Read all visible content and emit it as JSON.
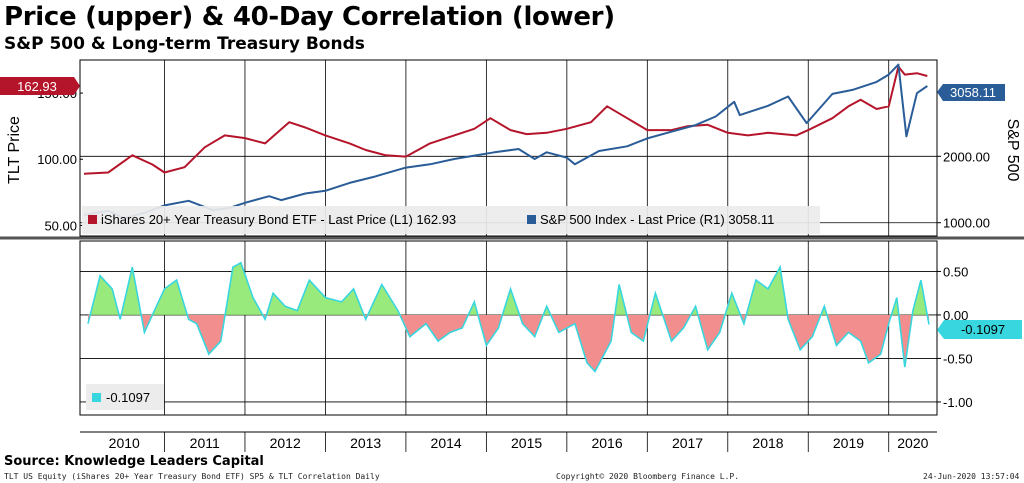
{
  "header": {
    "title": "Price (upper) & 40-Day Correlation (lower)",
    "subtitle": "S&P 500 & Long-term Treasury Bonds"
  },
  "footer": {
    "source": "Source: Knowledge Leaders Capital",
    "security": "TLT US Equity (iShares 20+ Year Treasury Bond ETF) SP5 & TLT Correlation  Daily",
    "copyright": "Copyright© 2020 Bloomberg Finance L.P.",
    "timestamp": "24-Jun-2020 13:57:04"
  },
  "colors": {
    "tlt": "#b5152b",
    "spx": "#2a5d98",
    "corr_line": "#38d6de",
    "corr_positive": "#99ea7d",
    "corr_negative": "#f28e8e",
    "grid": "#000000",
    "divider": "#555555"
  },
  "chart_data": [
    {
      "type": "line",
      "panel": "upper",
      "x_range": [
        2009.95,
        2020.6
      ],
      "x_ticks": [
        "2010",
        "2011",
        "2012",
        "2013",
        "2014",
        "2015",
        "2016",
        "2017",
        "2018",
        "2019",
        "2020"
      ],
      "ylabel_left": "TLT Price",
      "ylabel_right": "S&P 500",
      "ylim_left": [
        42,
        175
      ],
      "ylim_right": [
        800,
        3450
      ],
      "yticks_left": [
        "50.00",
        "100.00",
        "150.00"
      ],
      "yticks_right": [
        "1000.00",
        "2000.00"
      ],
      "legend_placement": "bottom-left",
      "series": [
        {
          "name": "iShares 20+ Year Treasury Bond ETF - Last Price (L1) 162.93",
          "axis": "left",
          "last_label": "162.93",
          "x": [
            2010.0,
            2010.3,
            2010.6,
            2010.85,
            2011.0,
            2011.25,
            2011.5,
            2011.75,
            2012.0,
            2012.25,
            2012.55,
            2012.75,
            2013.0,
            2013.3,
            2013.5,
            2013.75,
            2014.0,
            2014.3,
            2014.6,
            2014.85,
            2015.05,
            2015.3,
            2015.5,
            2015.75,
            2016.0,
            2016.3,
            2016.5,
            2016.75,
            2017.0,
            2017.3,
            2017.5,
            2017.75,
            2018.0,
            2018.25,
            2018.5,
            2018.85,
            2019.0,
            2019.3,
            2019.5,
            2019.65,
            2019.85,
            2020.0,
            2020.12,
            2020.2,
            2020.35,
            2020.48
          ],
          "values": [
            89,
            90,
            103,
            96,
            90,
            94,
            109,
            118,
            116,
            112,
            128,
            124,
            118,
            112,
            107,
            103,
            102,
            112,
            118,
            123,
            131,
            122,
            119,
            120,
            123,
            128,
            140,
            131,
            122,
            122,
            125,
            126,
            120,
            118,
            120,
            118,
            122,
            131,
            140,
            145,
            138,
            140,
            170,
            164,
            165,
            162.93
          ]
        },
        {
          "name": "S&P 500 Index - Last Price (R1) 3058.11",
          "axis": "right",
          "last_label": "3058.11",
          "x": [
            2010.0,
            2010.3,
            2010.5,
            2010.75,
            2011.0,
            2011.3,
            2011.6,
            2011.8,
            2012.0,
            2012.3,
            2012.45,
            2012.75,
            2013.0,
            2013.3,
            2013.6,
            2013.8,
            2014.0,
            2014.3,
            2014.6,
            2014.85,
            2015.1,
            2015.4,
            2015.6,
            2015.75,
            2016.0,
            2016.1,
            2016.4,
            2016.75,
            2017.0,
            2017.3,
            2017.6,
            2017.85,
            2018.08,
            2018.15,
            2018.5,
            2018.75,
            2018.98,
            2019.3,
            2019.55,
            2019.85,
            2020.0,
            2020.12,
            2020.22,
            2020.35,
            2020.48
          ],
          "values": [
            1115,
            1180,
            1070,
            1150,
            1260,
            1330,
            1190,
            1220,
            1300,
            1400,
            1340,
            1440,
            1480,
            1600,
            1690,
            1760,
            1830,
            1880,
            1960,
            2010,
            2060,
            2110,
            1960,
            2060,
            1980,
            1880,
            2080,
            2150,
            2270,
            2370,
            2470,
            2600,
            2820,
            2620,
            2760,
            2900,
            2500,
            2940,
            3000,
            3120,
            3230,
            3380,
            2300,
            2950,
            3058.11
          ]
        }
      ]
    },
    {
      "type": "area",
      "panel": "lower",
      "x_range": [
        2009.95,
        2020.6
      ],
      "ylim": [
        -1.15,
        0.85
      ],
      "yticks": [
        "0.50",
        "0.00",
        "-0.50",
        "-1.00"
      ],
      "legend_placement": "bottom-left",
      "series": [
        {
          "name": "-0.1097",
          "last_label": "-0.1097",
          "x": [
            2010.05,
            2010.2,
            2010.35,
            2010.45,
            2010.6,
            2010.75,
            2010.9,
            2011.0,
            2011.15,
            2011.3,
            2011.4,
            2011.55,
            2011.7,
            2011.85,
            2011.95,
            2012.1,
            2012.25,
            2012.35,
            2012.5,
            2012.65,
            2012.8,
            2013.0,
            2013.2,
            2013.35,
            2013.5,
            2013.7,
            2013.9,
            2014.05,
            2014.25,
            2014.4,
            2014.55,
            2014.7,
            2014.85,
            2015.0,
            2015.15,
            2015.3,
            2015.45,
            2015.6,
            2015.75,
            2015.9,
            2016.1,
            2016.25,
            2016.35,
            2016.55,
            2016.65,
            2016.8,
            2016.95,
            2017.1,
            2017.3,
            2017.45,
            2017.6,
            2017.75,
            2017.9,
            2018.05,
            2018.2,
            2018.35,
            2018.5,
            2018.65,
            2018.75,
            2018.9,
            2019.05,
            2019.2,
            2019.35,
            2019.5,
            2019.65,
            2019.75,
            2019.9,
            2020.0,
            2020.1,
            2020.2,
            2020.3,
            2020.4,
            2020.5
          ],
          "values": [
            -0.1,
            0.45,
            0.3,
            -0.05,
            0.55,
            -0.2,
            0.1,
            0.3,
            0.4,
            -0.05,
            -0.1,
            -0.45,
            -0.3,
            0.55,
            0.6,
            0.2,
            -0.05,
            0.25,
            0.1,
            0.05,
            0.4,
            0.2,
            0.15,
            0.3,
            -0.05,
            0.35,
            0.05,
            -0.25,
            -0.1,
            -0.3,
            -0.2,
            -0.15,
            0.15,
            -0.35,
            -0.15,
            0.3,
            -0.1,
            -0.25,
            0.1,
            -0.2,
            -0.1,
            -0.55,
            -0.65,
            -0.3,
            0.35,
            -0.2,
            -0.3,
            0.25,
            -0.3,
            -0.15,
            0.1,
            -0.4,
            -0.2,
            0.25,
            -0.1,
            0.4,
            0.3,
            0.55,
            -0.05,
            -0.4,
            -0.25,
            0.1,
            -0.35,
            -0.2,
            -0.3,
            -0.55,
            -0.45,
            -0.1,
            0.2,
            -0.6,
            0.05,
            0.4,
            -0.1097
          ]
        }
      ]
    }
  ]
}
